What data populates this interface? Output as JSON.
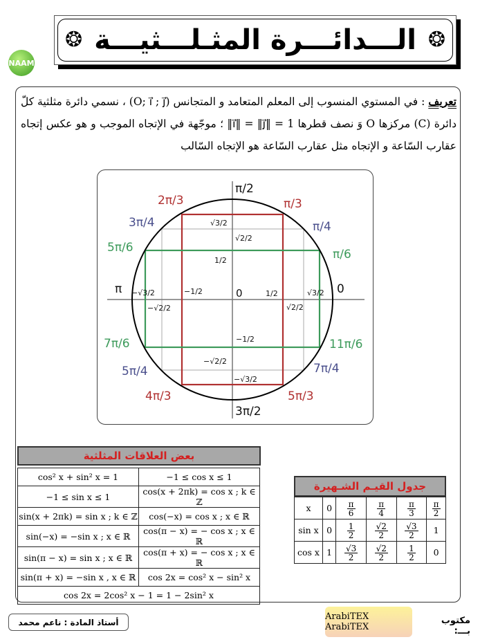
{
  "header": {
    "title": "الـــدائـــرة المثـلـــثيـــة",
    "logo": "NAAM"
  },
  "definition": {
    "label": "تعريف",
    "text": " : في المستوي المنسوب إلى المعلم المتعامد و المتجانس (O; i⃗ ; j⃗) ، نسمي دائرة مثلثية كلّ دائرة (C) مركزها O وَ نصف قطرها 1 = ‖i⃗‖ = ‖j⃗‖ ؛ موجّهة في الإتجاه الموجب و هو عكس إتجاه عقارب السّاعة و الإتجاه مثل عقارب السّاعة هو الإتجاه السّالب"
  },
  "circle": {
    "colors": {
      "red": "#b03030",
      "blue": "#4a4f8c",
      "green": "#3c9a5a"
    },
    "angles": {
      "pi_2": "π/2",
      "two_pi_3": "2π/3",
      "pi_3": "π/3",
      "three_pi_4": "3π/4",
      "pi_4": "π/4",
      "five_pi_6": "5π/6",
      "pi_6": "π/6",
      "pi": "π",
      "zero": "0",
      "seven_pi_6": "7π/6",
      "eleven_pi_6": "11π/6",
      "five_pi_4": "5π/4",
      "seven_pi_4": "7π/4",
      "four_pi_3": "4π/3",
      "five_pi_3": "5π/3",
      "three_pi_2": "3π/2"
    },
    "values": {
      "y_sqrt3": "√3/2",
      "y_sqrt2": "√2/2",
      "y_half": "1/2",
      "x_neg_sqrt3": "−√3/2",
      "x_neg_half": "−1/2",
      "origin": "0",
      "x_half": "1/2",
      "x_sqrt3": "√3/2",
      "x_neg_sqrt2": "−√2/2",
      "x_sqrt2": "√2/2",
      "y_neg_half": "−1/2",
      "y_neg_sqrt2": "−√2/2",
      "y_neg_sqrt3": "−√3/2"
    }
  },
  "relations": {
    "title": "بعض العلاقات المثلثية",
    "rows": [
      [
        "cos² x + sin² x = 1",
        "−1 ≤ cos x ≤ 1"
      ],
      [
        "−1 ≤ sin x ≤ 1",
        "cos(x + 2πk) = cos x ; k ∈ ℤ"
      ],
      [
        "sin(x + 2πk) = sin x ; k ∈ ℤ",
        "cos(−x) = cos x ; x ∈ ℝ"
      ],
      [
        "sin(−x) = −sin x ; x ∈ ℝ",
        "cos(π − x) = − cos x ; x ∈ ℝ"
      ],
      [
        "sin(π − x) = sin x ; x ∈ ℝ",
        "cos(π + x) = − cos x ; x ∈ ℝ"
      ],
      [
        "sin(π + x) = −sin x , x ∈ ℝ",
        "cos 2x = cos² x − sin² x"
      ]
    ],
    "last_row": "cos 2x = 2cos² x − 1 = 1 − 2sin² x"
  },
  "values_table": {
    "title": "جدول القيـم الشـهيرة",
    "rows": [
      {
        "label": "x",
        "cells": [
          [
            "0"
          ],
          [
            "π",
            "6"
          ],
          [
            "π",
            "4"
          ],
          [
            "π",
            "3"
          ],
          [
            "π",
            "2"
          ]
        ]
      },
      {
        "label": "sin x",
        "cells": [
          [
            "0"
          ],
          [
            "1",
            "2"
          ],
          [
            "√2",
            "2"
          ],
          [
            "√3",
            "2"
          ],
          [
            "1"
          ]
        ]
      },
      {
        "label": "cos x",
        "cells": [
          [
            "1"
          ],
          [
            "√3",
            "2"
          ],
          [
            "√2",
            "2"
          ],
          [
            "1",
            "2"
          ],
          [
            "0"
          ]
        ]
      }
    ]
  },
  "footer": {
    "teacher": "أستاذ المادة : ناعم محمد",
    "badge": "ArabiTEX ArabiTEX",
    "written_by": "مكتوب بـــ:"
  }
}
